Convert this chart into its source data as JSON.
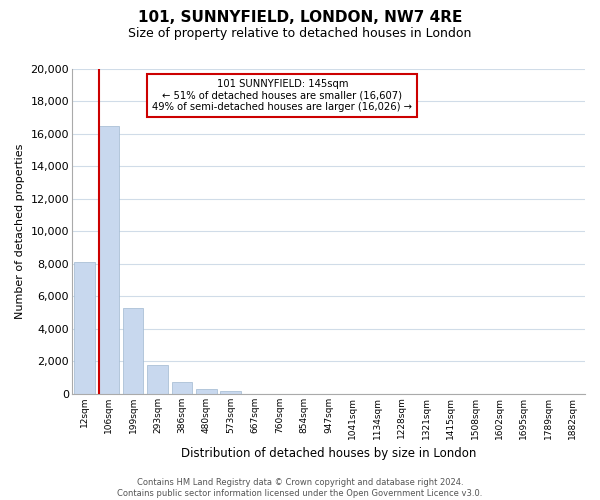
{
  "title": "101, SUNNYFIELD, LONDON, NW7 4RE",
  "subtitle": "Size of property relative to detached houses in London",
  "xlabel": "Distribution of detached houses by size in London",
  "ylabel": "Number of detached properties",
  "bar_values": [
    8100,
    16500,
    5300,
    1750,
    750,
    300,
    200,
    0,
    0,
    0,
    0,
    0,
    0,
    0,
    0,
    0,
    0,
    0,
    0,
    0,
    0
  ],
  "bar_color_main": "#c8d8ee",
  "x_labels": [
    "12sqm",
    "106sqm",
    "199sqm",
    "293sqm",
    "386sqm",
    "480sqm",
    "573sqm",
    "667sqm",
    "760sqm",
    "854sqm",
    "947sqm",
    "1041sqm",
    "1134sqm",
    "1228sqm",
    "1321sqm",
    "1415sqm",
    "1508sqm",
    "1602sqm",
    "1695sqm",
    "1789sqm",
    "1882sqm"
  ],
  "property_label": "101 SUNNYFIELD: 145sqm",
  "annotation_line1": "← 51% of detached houses are smaller (16,607)",
  "annotation_line2": "49% of semi-detached houses are larger (16,026) →",
  "annotation_box_color": "#ffffff",
  "annotation_box_edge": "#cc0000",
  "vertical_line_color": "#cc0000",
  "ylim": [
    0,
    20000
  ],
  "yticks": [
    0,
    2000,
    4000,
    6000,
    8000,
    10000,
    12000,
    14000,
    16000,
    18000,
    20000
  ],
  "footer_line1": "Contains HM Land Registry data © Crown copyright and database right 2024.",
  "footer_line2": "Contains public sector information licensed under the Open Government Licence v3.0.",
  "bg_color": "#ffffff",
  "grid_color": "#d0dce8",
  "bar_edge_color": "#a0b8d0"
}
